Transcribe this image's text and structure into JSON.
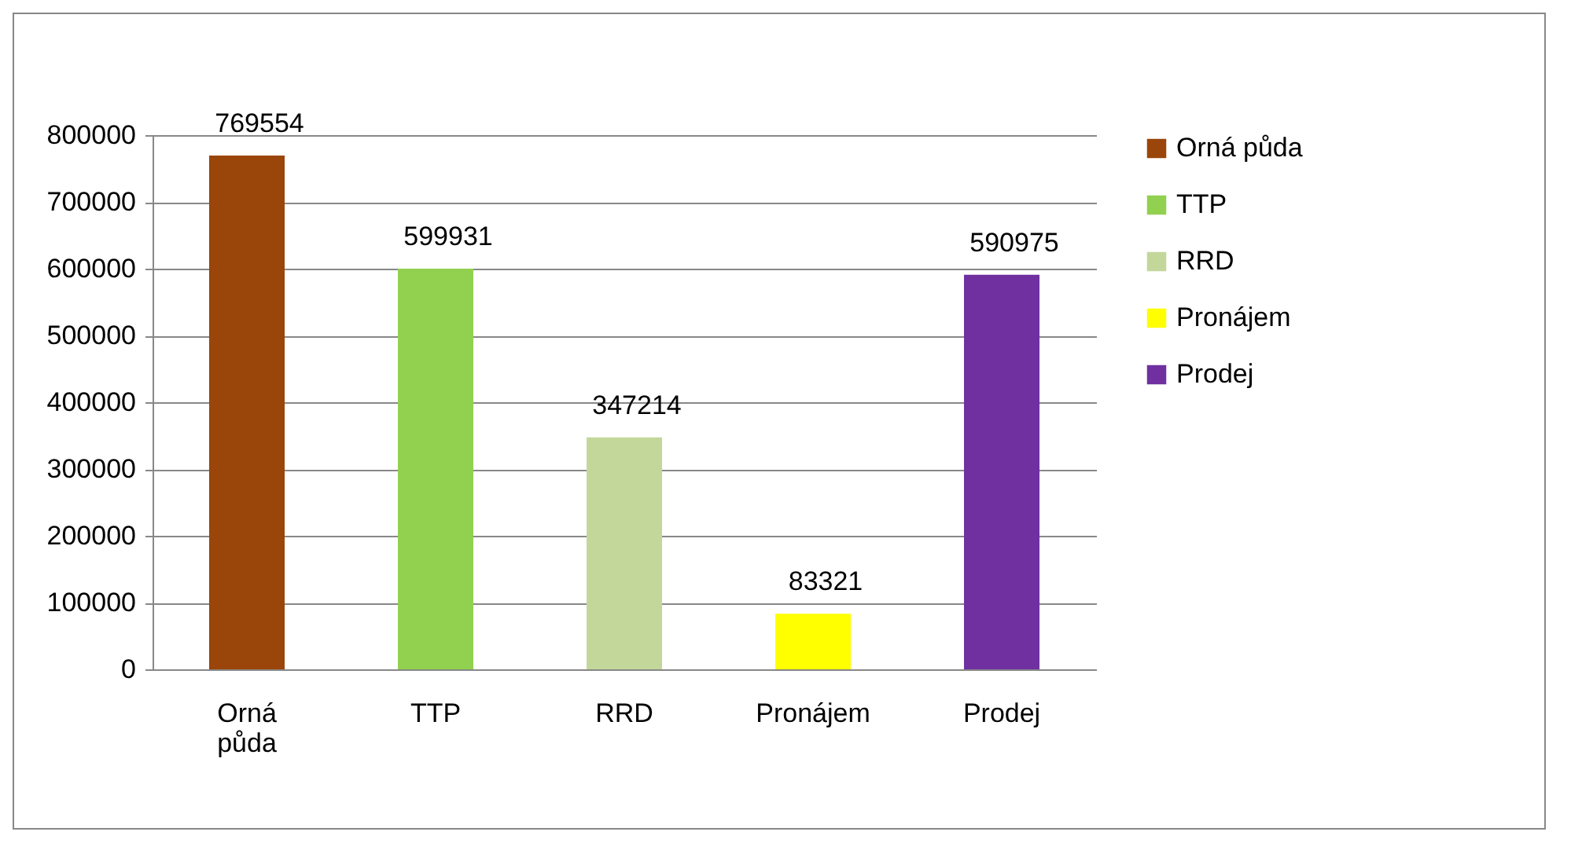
{
  "chart_data": {
    "type": "bar",
    "categories": [
      "Orná půda",
      "TTP",
      "RRD",
      "Pronájem",
      "Prodej"
    ],
    "series": [
      {
        "name": "Orná půda",
        "color": "#9a4509",
        "values": [
          769554,
          null,
          null,
          null,
          null
        ]
      },
      {
        "name": "TTP",
        "color": "#92d050",
        "values": [
          null,
          599931,
          null,
          null,
          null
        ]
      },
      {
        "name": "RRD",
        "color": "#c4d79b",
        "values": [
          null,
          null,
          347214,
          null,
          null
        ]
      },
      {
        "name": "Pronájem",
        "color": "#ffff00",
        "values": [
          null,
          null,
          null,
          83321,
          null
        ]
      },
      {
        "name": "Prodej",
        "color": "#7030a0",
        "values": [
          null,
          null,
          null,
          null,
          590975
        ]
      }
    ],
    "ylim": [
      0,
      800000
    ],
    "yticks": [
      0,
      100000,
      200000,
      300000,
      400000,
      500000,
      600000,
      700000,
      800000
    ],
    "grid": "y",
    "legend": "right",
    "data_labels": true
  }
}
